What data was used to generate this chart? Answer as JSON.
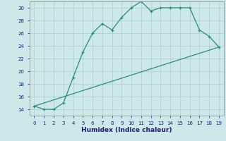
{
  "xlabel": "Humidex (Indice chaleur)",
  "line1_x": [
    0,
    1,
    2,
    3,
    4,
    5,
    6,
    7,
    8,
    9,
    10,
    11,
    12,
    13,
    14,
    15,
    16,
    17,
    18,
    19
  ],
  "line1_y": [
    14.5,
    14.0,
    14.0,
    15.0,
    19.0,
    23.0,
    26.0,
    27.5,
    26.5,
    28.5,
    30.0,
    31.0,
    29.5,
    30.0,
    30.0,
    30.0,
    30.0,
    26.5,
    25.5,
    23.8
  ],
  "line2_x": [
    0,
    19
  ],
  "line2_y": [
    14.5,
    23.8
  ],
  "color": "#2e8b7a",
  "bg_color": "#cce8e8",
  "grid_color": "#b0d0d0",
  "ylim": [
    13,
    31
  ],
  "xlim": [
    -0.5,
    19.5
  ],
  "yticks": [
    14,
    16,
    18,
    20,
    22,
    24,
    26,
    28,
    30
  ],
  "xticks": [
    0,
    1,
    2,
    3,
    4,
    5,
    6,
    7,
    8,
    9,
    10,
    11,
    12,
    13,
    14,
    15,
    16,
    17,
    18,
    19
  ]
}
